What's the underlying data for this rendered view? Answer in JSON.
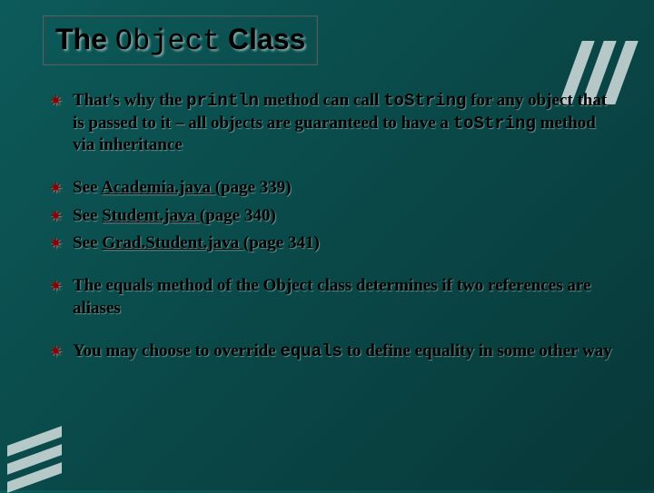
{
  "title": {
    "pre": "The ",
    "mono": "Object",
    "post": " Class"
  },
  "bullets": [
    {
      "segments": [
        {
          "t": "That's why the "
        },
        {
          "t": "println",
          "mono": true
        },
        {
          "t": " method can call "
        },
        {
          "t": "toString",
          "mono": true
        },
        {
          "t": " for any object that is passed to it – all objects are guaranteed to have a "
        },
        {
          "t": "toString",
          "mono": true
        },
        {
          "t": " method via inheritance"
        }
      ],
      "gapBefore": false
    },
    {
      "segments": [
        {
          "t": "See "
        },
        {
          "t": "Academia.java ",
          "link": true
        },
        {
          "t": "(page 339)"
        }
      ],
      "gapBefore": true
    },
    {
      "segments": [
        {
          "t": "See "
        },
        {
          "t": "Student.java ",
          "link": true
        },
        {
          "t": "(page 340)"
        }
      ],
      "gapBefore": false
    },
    {
      "segments": [
        {
          "t": "See "
        },
        {
          "t": "Grad.Student.java ",
          "link": true
        },
        {
          "t": "(page 341)"
        }
      ],
      "gapBefore": false
    },
    {
      "segments": [
        {
          "t": "The equals method of the Object class determines if two references are aliases"
        }
      ],
      "gapBefore": true
    },
    {
      "segments": [
        {
          "t": "You may choose to override "
        },
        {
          "t": "equals",
          "mono": true
        },
        {
          "t": " to define equality in some other way"
        }
      ],
      "gapBefore": true
    }
  ],
  "bullet_glyph": "✷",
  "colors": {
    "bullet": "#8b0000",
    "text": "#000000"
  }
}
